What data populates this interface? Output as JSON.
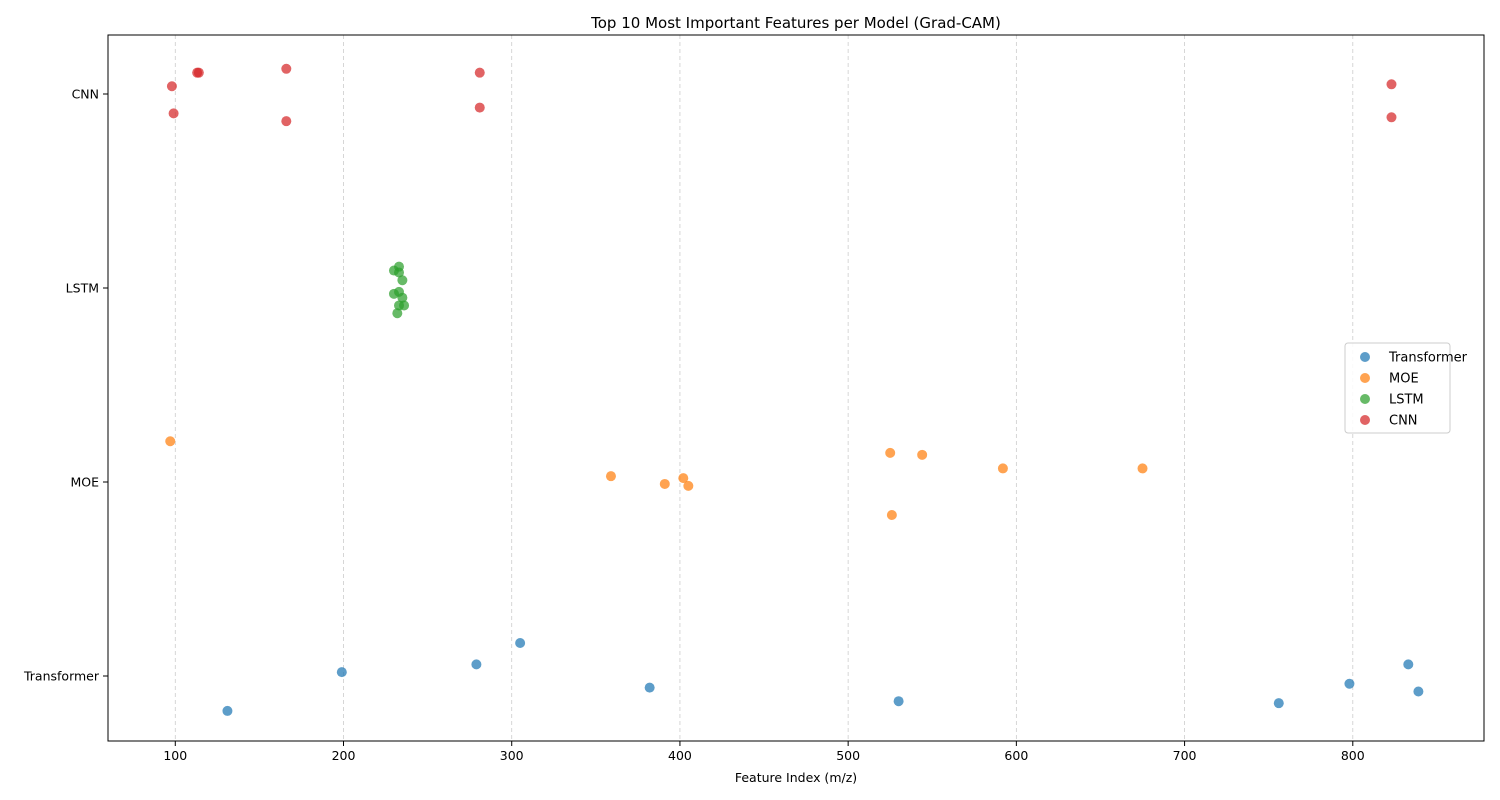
{
  "chart_data": {
    "type": "scatter",
    "title": "Top 10 Most Important Features per Model (Grad-CAM)",
    "xlabel": "Feature Index (m/z)",
    "ylabel": "",
    "xlim": [
      60,
      878
    ],
    "x_ticks": [
      100,
      200,
      300,
      400,
      500,
      600,
      700,
      800
    ],
    "y_categories": [
      "Transformer",
      "MOE",
      "LSTM",
      "CNN"
    ],
    "grid": "vertical dashed",
    "legend_position": "center-right",
    "series": [
      {
        "name": "Transformer",
        "color": "#1f77b4",
        "points": [
          {
            "x": 131,
            "y": -0.18
          },
          {
            "x": 199,
            "y": 0.02
          },
          {
            "x": 279,
            "y": 0.06
          },
          {
            "x": 305,
            "y": 0.17
          },
          {
            "x": 382,
            "y": -0.06
          },
          {
            "x": 530,
            "y": -0.13
          },
          {
            "x": 756,
            "y": -0.14
          },
          {
            "x": 798,
            "y": -0.04
          },
          {
            "x": 833,
            "y": 0.06
          },
          {
            "x": 839,
            "y": -0.08
          }
        ]
      },
      {
        "name": "MOE",
        "color": "#ff7f0e",
        "points": [
          {
            "x": 97,
            "y": 1.21
          },
          {
            "x": 359,
            "y": 1.03
          },
          {
            "x": 391,
            "y": 0.99
          },
          {
            "x": 402,
            "y": 1.02
          },
          {
            "x": 405,
            "y": 0.98
          },
          {
            "x": 525,
            "y": 1.15
          },
          {
            "x": 526,
            "y": 0.83
          },
          {
            "x": 544,
            "y": 1.14
          },
          {
            "x": 592,
            "y": 1.07
          },
          {
            "x": 675,
            "y": 1.07
          }
        ]
      },
      {
        "name": "LSTM",
        "color": "#2ca02c",
        "points": [
          {
            "x": 230,
            "y": 2.09
          },
          {
            "x": 233,
            "y": 2.11
          },
          {
            "x": 233,
            "y": 2.08
          },
          {
            "x": 235,
            "y": 2.04
          },
          {
            "x": 230,
            "y": 1.97
          },
          {
            "x": 233,
            "y": 1.98
          },
          {
            "x": 235,
            "y": 1.95
          },
          {
            "x": 233,
            "y": 1.91
          },
          {
            "x": 236,
            "y": 1.91
          },
          {
            "x": 232,
            "y": 1.87
          }
        ]
      },
      {
        "name": "CNN",
        "color": "#d62728",
        "points": [
          {
            "x": 98,
            "y": 3.04
          },
          {
            "x": 99,
            "y": 2.9
          },
          {
            "x": 113,
            "y": 3.11
          },
          {
            "x": 114,
            "y": 3.11
          },
          {
            "x": 166,
            "y": 3.13
          },
          {
            "x": 166,
            "y": 2.86
          },
          {
            "x": 281,
            "y": 3.11
          },
          {
            "x": 281,
            "y": 2.93
          },
          {
            "x": 823,
            "y": 3.05
          },
          {
            "x": 823,
            "y": 2.88
          }
        ]
      }
    ]
  }
}
